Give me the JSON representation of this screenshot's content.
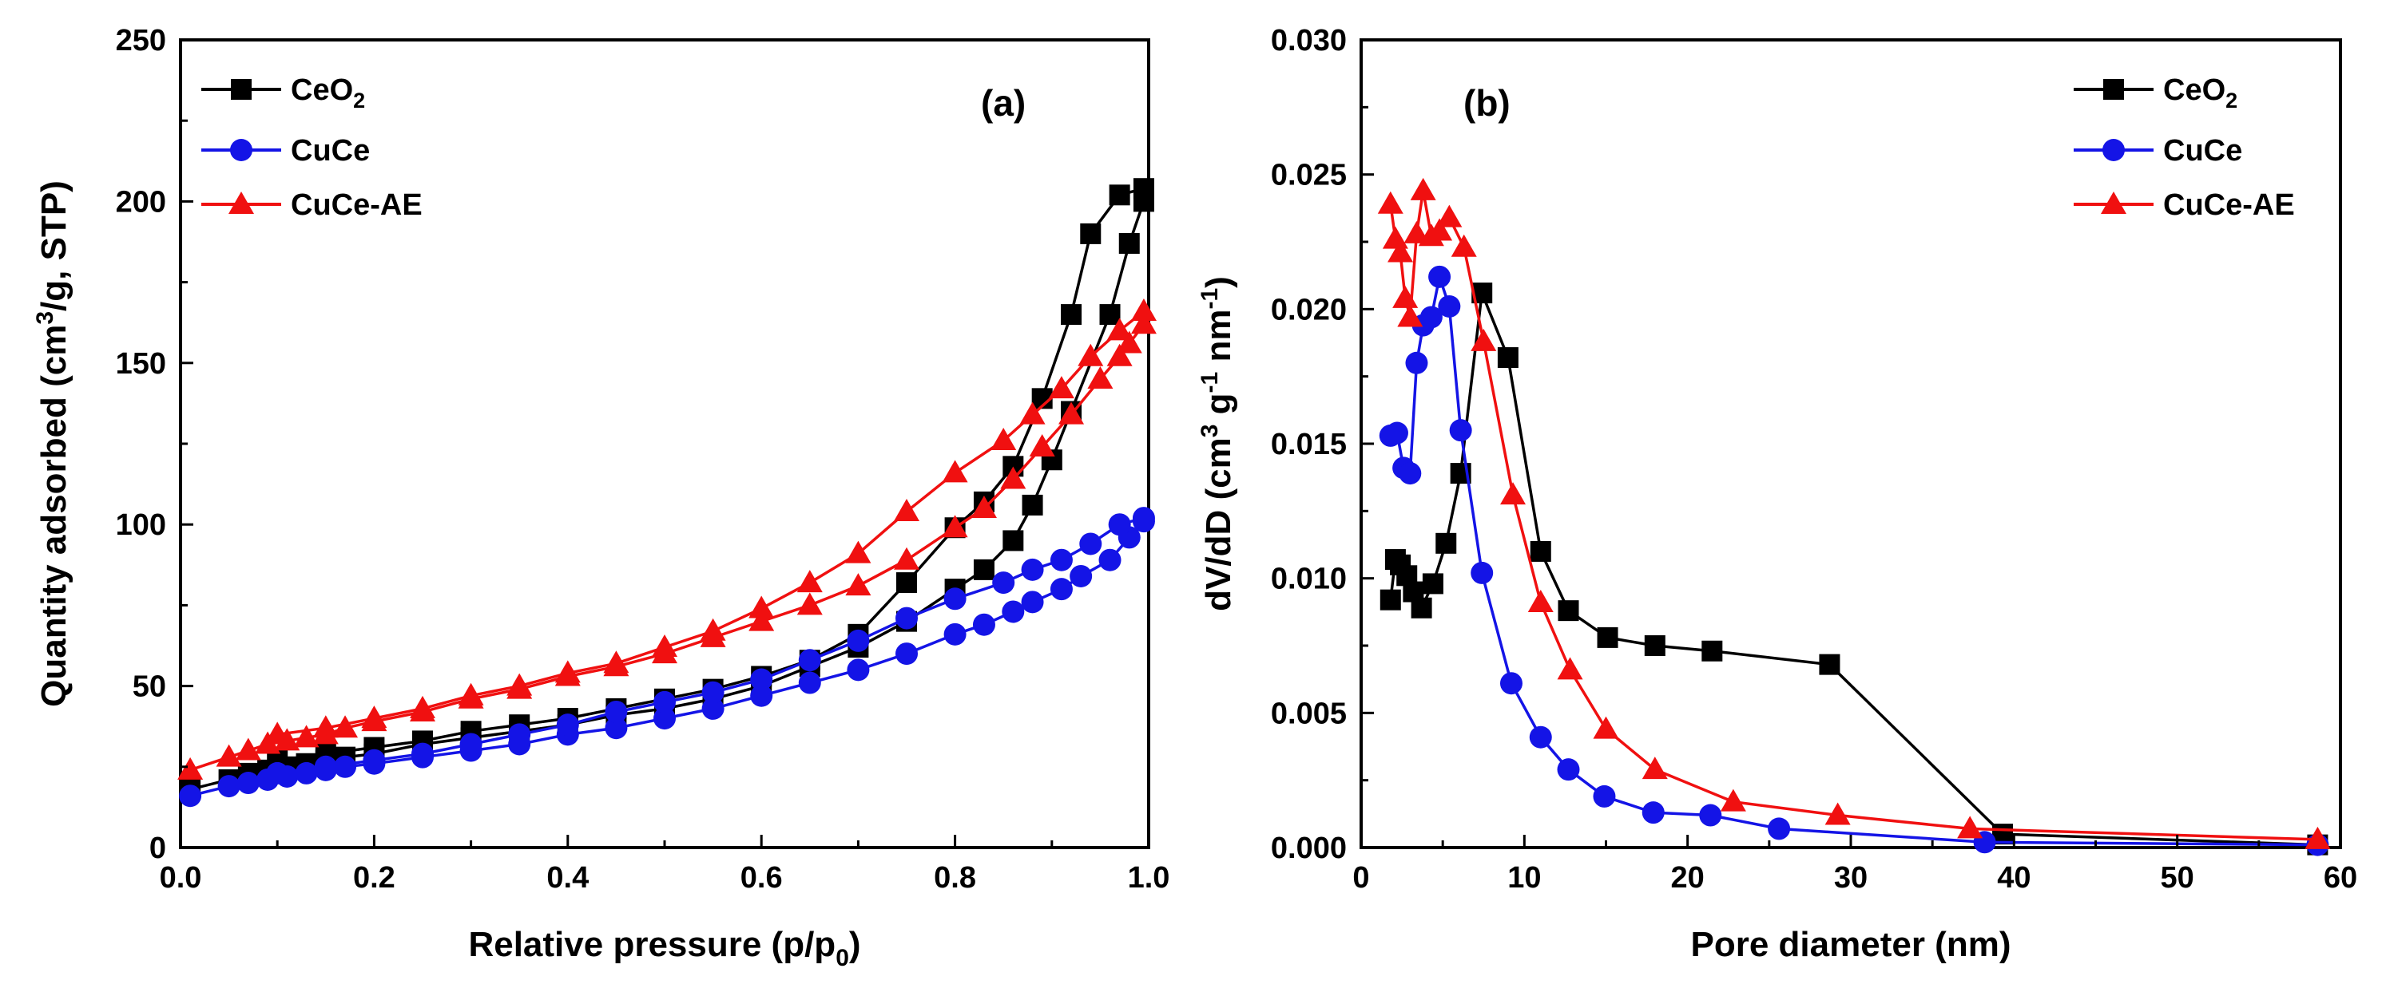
{
  "chart_data": [
    {
      "type": "line",
      "panel_label": "(a)",
      "xlabel": {
        "main": "Relative pressure (p/p",
        "sub": "0",
        "end": ")"
      },
      "ylabel": {
        "main": "Quantity adsorbed (cm",
        "sup": "3",
        "end": "/g, STP)"
      },
      "xlim": [
        0.0,
        1.0
      ],
      "ylim": [
        0,
        250
      ],
      "xticks": [
        "0.0",
        "0.2",
        "0.4",
        "0.6",
        "0.8",
        "1.0"
      ],
      "yticks": [
        "0",
        "50",
        "100",
        "150",
        "200",
        "250"
      ],
      "legend_position": "top-left",
      "series": [
        {
          "name": "CeO",
          "name_sub": "2",
          "color": "#000000",
          "marker": "square",
          "adsorption": {
            "x": [
              0.01,
              0.05,
              0.07,
              0.09,
              0.11,
              0.13,
              0.15,
              0.17,
              0.2,
              0.25,
              0.3,
              0.35,
              0.4,
              0.45,
              0.5,
              0.55,
              0.6,
              0.65,
              0.7,
              0.75,
              0.8,
              0.83,
              0.86,
              0.88,
              0.9,
              0.92,
              0.96,
              0.98,
              0.995
            ],
            "y": [
              18,
              21,
              23,
              24,
              25,
              26,
              27,
              28,
              29,
              32,
              34,
              36,
              38,
              41,
              43,
              46,
              50,
              56,
              62,
              70,
              80,
              86,
              95,
              106,
              120,
              135,
              165,
              187,
              200
            ]
          },
          "desorption": {
            "x": [
              0.995,
              0.97,
              0.94,
              0.92,
              0.89,
              0.86,
              0.83,
              0.8,
              0.75,
              0.7,
              0.65,
              0.6,
              0.55,
              0.5,
              0.45,
              0.4,
              0.35,
              0.3,
              0.25,
              0.2,
              0.15,
              0.1
            ],
            "y": [
              204,
              202,
              190,
              165,
              139,
              118,
              107,
              99,
              82,
              66,
              58,
              53,
              49,
              46,
              43,
              40,
              38,
              36,
              33,
              31,
              29,
              27
            ]
          }
        },
        {
          "name": "CuCe",
          "color": "#1414e6",
          "marker": "circle",
          "adsorption": {
            "x": [
              0.01,
              0.05,
              0.07,
              0.09,
              0.11,
              0.13,
              0.15,
              0.17,
              0.2,
              0.25,
              0.3,
              0.35,
              0.4,
              0.45,
              0.5,
              0.55,
              0.6,
              0.65,
              0.7,
              0.75,
              0.8,
              0.83,
              0.86,
              0.88,
              0.91,
              0.93,
              0.96,
              0.98,
              0.995
            ],
            "y": [
              16,
              19,
              20,
              21,
              22,
              23,
              24,
              25,
              26,
              28,
              30,
              32,
              35,
              37,
              40,
              43,
              47,
              51,
              55,
              60,
              66,
              69,
              73,
              76,
              80,
              84,
              89,
              96,
              101
            ]
          },
          "desorption": {
            "x": [
              0.995,
              0.97,
              0.94,
              0.91,
              0.88,
              0.85,
              0.8,
              0.75,
              0.7,
              0.65,
              0.6,
              0.55,
              0.5,
              0.45,
              0.4,
              0.35,
              0.3,
              0.25,
              0.2,
              0.15,
              0.1
            ],
            "y": [
              102,
              100,
              94,
              89,
              86,
              82,
              77,
              71,
              64,
              58,
              52,
              48,
              45,
              42,
              38,
              35,
              32,
              29,
              27,
              25,
              23
            ]
          }
        },
        {
          "name": "CuCe-AE",
          "color": "#f01010",
          "marker": "triangle",
          "adsorption": {
            "x": [
              0.01,
              0.05,
              0.07,
              0.09,
              0.11,
              0.13,
              0.15,
              0.17,
              0.2,
              0.25,
              0.3,
              0.35,
              0.4,
              0.45,
              0.5,
              0.55,
              0.6,
              0.65,
              0.7,
              0.75,
              0.8,
              0.83,
              0.86,
              0.89,
              0.92,
              0.95,
              0.97,
              0.98,
              0.995
            ],
            "y": [
              24,
              28,
              30,
              32,
              33,
              34,
              35,
              37,
              39,
              42,
              46,
              49,
              53,
              56,
              60,
              65,
              70,
              75,
              81,
              89,
              99,
              105,
              114,
              124,
              134,
              145,
              152,
              156,
              162
            ]
          },
          "desorption": {
            "x": [
              0.995,
              0.97,
              0.94,
              0.91,
              0.88,
              0.85,
              0.8,
              0.75,
              0.7,
              0.65,
              0.6,
              0.55,
              0.5,
              0.45,
              0.4,
              0.35,
              0.3,
              0.25,
              0.2,
              0.15,
              0.1
            ],
            "y": [
              166,
              160,
              152,
              142,
              134,
              126,
              116,
              104,
              91,
              82,
              74,
              67,
              62,
              57,
              54,
              50,
              47,
              43,
              40,
              37,
              35
            ]
          }
        }
      ]
    },
    {
      "type": "line",
      "panel_label": "(b)",
      "xlabel": {
        "main": "Pore diameter (nm)"
      },
      "ylabel": {
        "main": "dV/dD (cm",
        "sup1": "3",
        "mid1": " g",
        "sup2": "-1",
        "mid2": " nm",
        "sup3": "-1",
        "end": ")"
      },
      "xlim": [
        0,
        60
      ],
      "ylim": [
        0.0,
        0.03
      ],
      "xticks": [
        "0",
        "10",
        "20",
        "30",
        "40",
        "50",
        "60"
      ],
      "yticks": [
        "0.000",
        "0.005",
        "0.010",
        "0.015",
        "0.020",
        "0.025",
        "0.030"
      ],
      "legend_position": "top-right",
      "series": [
        {
          "name": "CeO",
          "name_sub": "2",
          "color": "#000000",
          "marker": "square",
          "x": [
            1.8,
            2.1,
            2.4,
            2.8,
            3.2,
            3.7,
            4.4,
            5.2,
            6.1,
            7.4,
            9.0,
            11.0,
            12.7,
            15.1,
            18.0,
            21.5,
            28.7,
            39.3,
            58.6
          ],
          "y": [
            0.0092,
            0.0107,
            0.0105,
            0.0101,
            0.0095,
            0.0089,
            0.0098,
            0.0113,
            0.0139,
            0.0206,
            0.0182,
            0.011,
            0.0088,
            0.0078,
            0.0075,
            0.0073,
            0.0068,
            0.0005,
            0.0001
          ]
        },
        {
          "name": "CuCe",
          "color": "#1414e6",
          "marker": "circle",
          "x": [
            1.8,
            2.2,
            2.6,
            3.0,
            3.4,
            3.8,
            4.3,
            4.8,
            5.4,
            6.1,
            7.4,
            9.2,
            11.0,
            12.7,
            14.9,
            17.9,
            21.4,
            25.6,
            38.2,
            58.6
          ],
          "y": [
            0.0153,
            0.0154,
            0.0141,
            0.0139,
            0.018,
            0.0194,
            0.0197,
            0.0212,
            0.0201,
            0.0155,
            0.0102,
            0.0061,
            0.0041,
            0.0029,
            0.0019,
            0.0013,
            0.0012,
            0.0007,
            0.0002,
            0.0001
          ]
        },
        {
          "name": "CuCe-AE",
          "color": "#f01010",
          "marker": "triangle",
          "x": [
            1.8,
            2.1,
            2.4,
            2.7,
            3.0,
            3.4,
            3.8,
            4.3,
            4.8,
            5.4,
            6.3,
            7.5,
            9.3,
            11.0,
            12.8,
            15.0,
            18.0,
            22.8,
            29.2,
            37.3,
            58.6
          ],
          "y": [
            0.0239,
            0.0226,
            0.0221,
            0.0204,
            0.0197,
            0.0228,
            0.0244,
            0.0227,
            0.0229,
            0.0234,
            0.0223,
            0.0188,
            0.0131,
            0.0091,
            0.0066,
            0.0044,
            0.0029,
            0.0017,
            0.0012,
            0.0007,
            0.0003
          ]
        }
      ]
    }
  ]
}
